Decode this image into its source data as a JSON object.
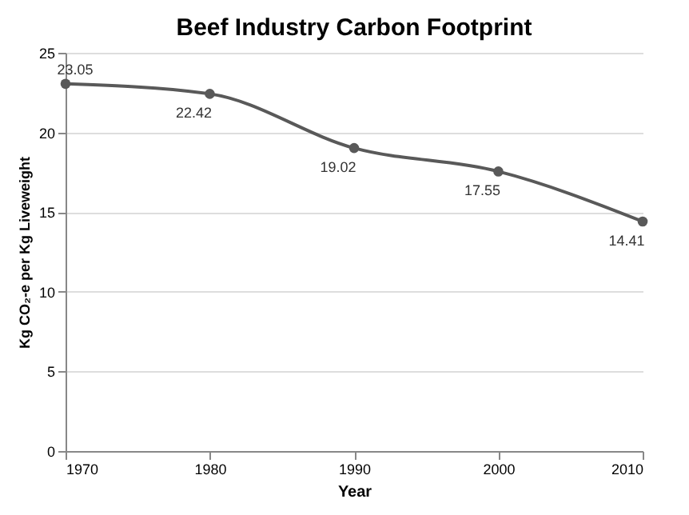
{
  "chart_data": {
    "type": "line",
    "title": "Beef Industry Carbon Footprint",
    "xlabel": "Year",
    "ylabel": "Kg CO₂-e per Kg Liveweight",
    "x": [
      1970,
      1980,
      1990,
      2000,
      2010
    ],
    "series": [
      {
        "color": "#595959",
        "values": [
          23.05,
          22.42,
          19.02,
          17.55,
          14.41
        ]
      }
    ],
    "xlim": [
      1970,
      2010
    ],
    "xticks": [
      1970,
      1980,
      1990,
      2000,
      2010
    ],
    "ylim": [
      0,
      25
    ],
    "yticks": [
      0,
      5,
      10,
      15,
      20,
      25
    ],
    "grid": "y",
    "marker": "circle",
    "line_style": "solid",
    "data_labels": true
  }
}
